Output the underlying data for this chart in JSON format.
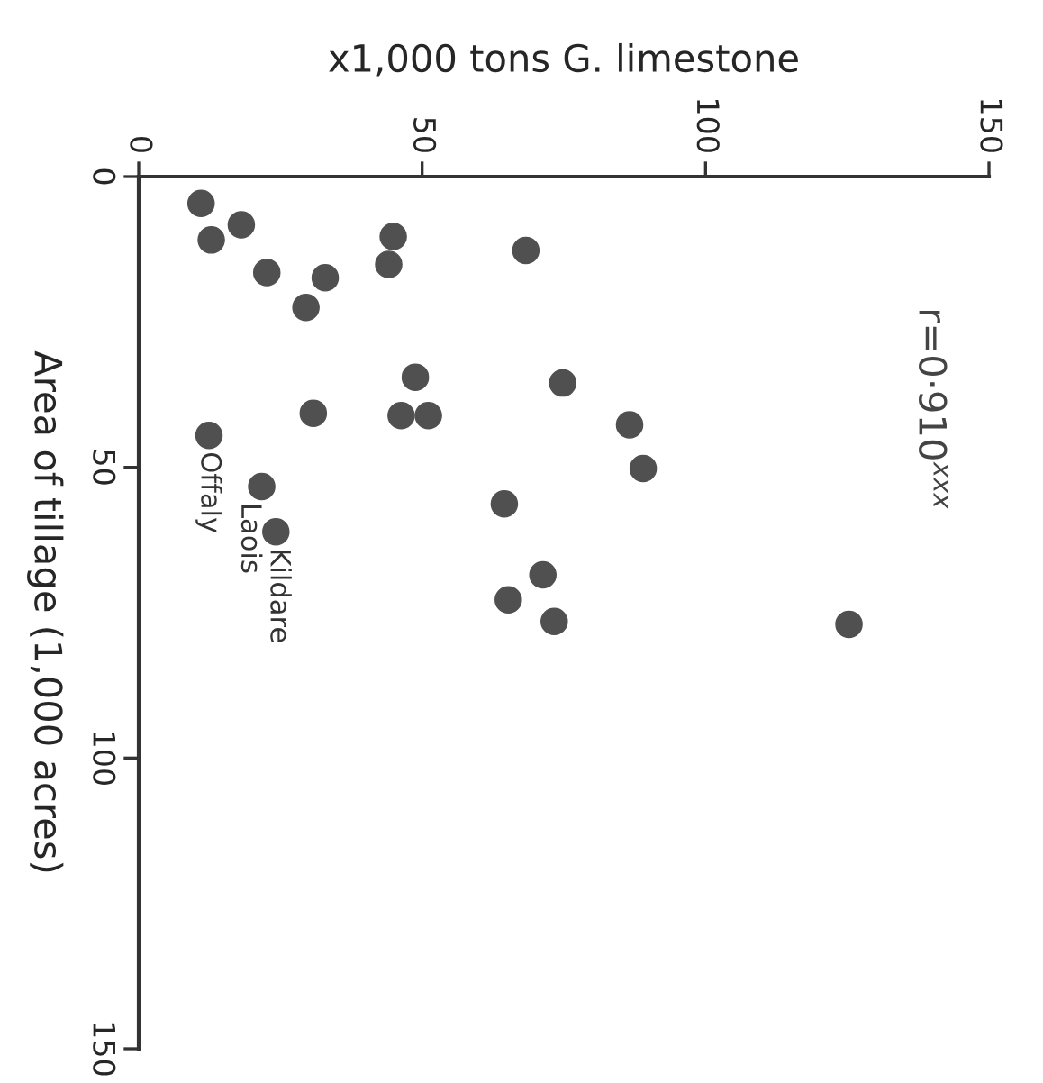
{
  "chart_data": {
    "type": "scatter",
    "xlabel": "x1,000 tons G. limestone",
    "ylabel": "Area of tillage (1,000 acres)",
    "x": [
      11.0,
      12.8,
      18.1,
      22.6,
      32.9,
      29.5,
      30.8,
      44.9,
      44.1,
      48.8,
      46.3,
      51.1,
      68.3,
      74.8,
      86.6,
      89.0,
      64.5,
      71.3,
      65.2,
      73.3,
      125.3,
      12.4,
      21.7,
      24.2
    ],
    "values": [
      4.6,
      10.9,
      8.3,
      16.5,
      17.4,
      22.5,
      40.7,
      10.3,
      15.1,
      34.5,
      41.1,
      41.1,
      12.7,
      35.5,
      42.7,
      50.2,
      56.3,
      68.5,
      72.8,
      76.5,
      77.0,
      44.5,
      53.3,
      61.1
    ],
    "color": "#505050",
    "marker": "circle",
    "xlim": [
      0,
      150
    ],
    "ylim": [
      150,
      0
    ],
    "xticks": [
      0,
      50,
      100,
      150
    ],
    "yticks": [
      0,
      50,
      100,
      150
    ],
    "grid": false,
    "annotations": [
      {
        "text": "Offaly",
        "x": 12.4,
        "y": 44.5
      },
      {
        "text": "Laois",
        "x": 21.7,
        "y": 53.3
      },
      {
        "text": "Kildare",
        "x": 24.2,
        "y": 61.1
      },
      "r=0·910$^{xxx}$"
    ]
  }
}
